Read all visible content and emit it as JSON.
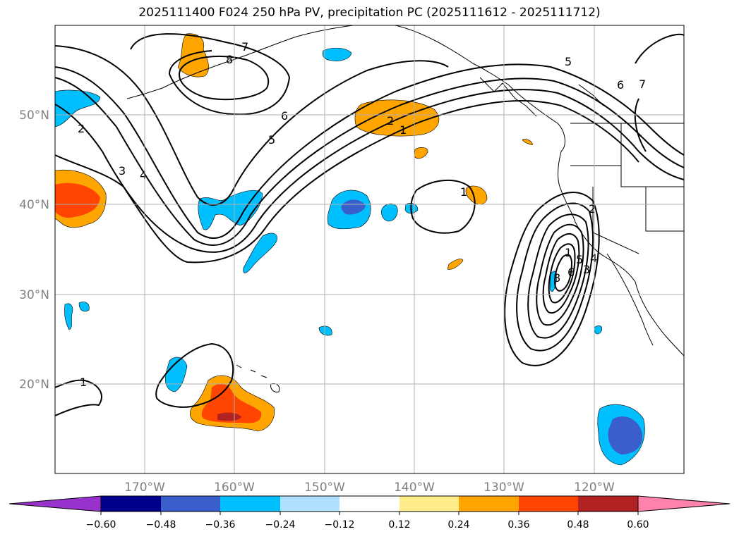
{
  "title": "2025111400 F024 250 hPa PV, precipitation PC (2025111612 - 2025111712)",
  "lat_ticks": [
    "50°N",
    "40°N",
    "30°N",
    "20°N"
  ],
  "lon_ticks": [
    "170°W",
    "160°W",
    "150°W",
    "140°W",
    "130°W",
    "120°W"
  ],
  "colorbar": {
    "colors": [
      "#9932cc",
      "#00008b",
      "#3a5fcd",
      "#00bfff",
      "#b0e2ff",
      "#ffffff",
      "#ffec8b",
      "#ffa500",
      "#ff4500",
      "#b22222",
      "#ff82ab"
    ],
    "labels": [
      "−0.60",
      "−0.48",
      "−0.36",
      "−0.24",
      "−0.12",
      "0.12",
      "0.24",
      "0.36",
      "0.48",
      "0.60"
    ]
  },
  "contour_labels": [
    "1",
    "2",
    "3",
    "4",
    "5",
    "6",
    "7",
    "8",
    "1",
    "2",
    "5",
    "6",
    "7",
    "1",
    "2",
    "3",
    "4",
    "5",
    "6",
    "8",
    "1"
  ],
  "chart_data": {
    "type": "map",
    "projection": "lat-lon",
    "lon_range": [
      -180,
      -110
    ],
    "lat_range": [
      10,
      60
    ],
    "grid": true,
    "fields": [
      {
        "name": "250 hPa PV",
        "style": "black contours",
        "levels": [
          1,
          2,
          3,
          4,
          5,
          6,
          7,
          8
        ]
      },
      {
        "name": "precipitation PC",
        "style": "filled",
        "levels": [
          -0.6,
          -0.48,
          -0.36,
          -0.24,
          -0.12,
          0.12,
          0.24,
          0.36,
          0.48,
          0.6
        ]
      }
    ]
  }
}
